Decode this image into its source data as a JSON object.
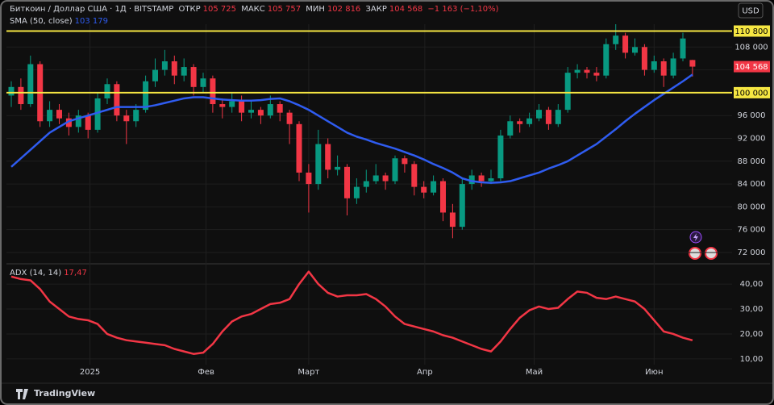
{
  "header": {
    "title": "Биткоин / Доллар США · 1Д · BITSTAMP",
    "fields": [
      {
        "label": "ОТКР",
        "value": "105 725"
      },
      {
        "label": "МАКС",
        "value": "105 757"
      },
      {
        "label": "МИН",
        "value": "102 816"
      },
      {
        "label": "ЗАКР",
        "value": "104 568"
      }
    ],
    "change": "−1 163 (−1,10%)"
  },
  "currency": "USD",
  "footer": {
    "brand": "TradingView"
  },
  "chart_data": [
    {
      "type": "candlestick",
      "up_color": "#089981",
      "down_color": "#f23645",
      "ylim": [
        70300,
        112000
      ],
      "yticks": [
        {
          "value": 72000,
          "label": "72 000"
        },
        {
          "value": 76000,
          "label": "76 000"
        },
        {
          "value": 80000,
          "label": "80 000"
        },
        {
          "value": 84000,
          "label": "84 000"
        },
        {
          "value": 88000,
          "label": "88 000"
        },
        {
          "value": 92000,
          "label": "92 000"
        },
        {
          "value": 96000,
          "label": "96 000"
        },
        {
          "value": 100000,
          "label": "100 000"
        },
        {
          "value": 104000,
          "label": "104 000"
        },
        {
          "value": 108000,
          "label": "108 000"
        }
      ],
      "xticks": [
        {
          "value": 8.2,
          "label": "2025"
        },
        {
          "value": 20.3,
          "label": "Фев"
        },
        {
          "value": 31,
          "label": "Март"
        },
        {
          "value": 43.1,
          "label": "Апр"
        },
        {
          "value": 54.5,
          "label": "Май"
        },
        {
          "value": 67,
          "label": "Июн"
        }
      ],
      "levels": [
        {
          "value": 110800,
          "label": "110 800",
          "color": "#f5e642"
        },
        {
          "value": 100000,
          "label": "100 000",
          "color": "#f5e642"
        }
      ],
      "last_price": {
        "value": 104568,
        "label": "104 568",
        "color": "#f23645"
      },
      "series": [
        {
          "ohlc": [
            [
              99500,
              102000,
              97500,
              101000
            ],
            [
              101000,
              102500,
              97000,
              98000
            ],
            [
              98000,
              106500,
              97500,
              105000
            ],
            [
              105000,
              105500,
              94000,
              95000
            ],
            [
              95000,
              98500,
              94000,
              97000
            ],
            [
              97000,
              98000,
              94500,
              95500
            ],
            [
              95500,
              96500,
              92500,
              94000
            ],
            [
              94000,
              97000,
              93000,
              96000
            ],
            [
              96000,
              96500,
              92000,
              93500
            ],
            [
              93500,
              100000,
              93000,
              99000
            ],
            [
              99000,
              102500,
              98000,
              101500
            ],
            [
              101500,
              102000,
              95000,
              96000
            ],
            [
              96000,
              97000,
              91000,
              95000
            ],
            [
              95000,
              98000,
              94000,
              97000
            ],
            [
              97000,
              103000,
              96500,
              102000
            ],
            [
              102000,
              106000,
              101000,
              104000
            ],
            [
              104000,
              107500,
              103000,
              105500
            ],
            [
              105500,
              106500,
              101500,
              103000
            ],
            [
              103000,
              106000,
              102000,
              104500
            ],
            [
              104500,
              105000,
              99500,
              101000
            ],
            [
              101000,
              103500,
              100000,
              102500
            ],
            [
              102500,
              103000,
              96500,
              98000
            ],
            [
              98000,
              99000,
              95500,
              97500
            ],
            [
              97500,
              100000,
              96500,
              98500
            ],
            [
              98500,
              99500,
              95000,
              96500
            ],
            [
              96500,
              98500,
              95500,
              97000
            ],
            [
              97000,
              97500,
              94500,
              96000
            ],
            [
              96000,
              99500,
              95500,
              98000
            ],
            [
              98000,
              98500,
              95000,
              96500
            ],
            [
              96500,
              97000,
              91000,
              94500
            ],
            [
              94500,
              95000,
              84500,
              86000
            ],
            [
              86000,
              87500,
              79000,
              84000
            ],
            [
              84000,
              93500,
              83000,
              91000
            ],
            [
              91000,
              92000,
              85000,
              86500
            ],
            [
              86500,
              89000,
              85500,
              87000
            ],
            [
              87000,
              87500,
              78500,
              81500
            ],
            [
              81500,
              85000,
              80500,
              83500
            ],
            [
              83500,
              86500,
              82500,
              84500
            ],
            [
              84500,
              87500,
              84000,
              85500
            ],
            [
              85500,
              86000,
              83000,
              84500
            ],
            [
              84500,
              89000,
              84000,
              88500
            ],
            [
              88500,
              89000,
              86000,
              87500
            ],
            [
              87500,
              88000,
              82000,
              83500
            ],
            [
              83500,
              84500,
              81500,
              82500
            ],
            [
              82500,
              85500,
              82000,
              84500
            ],
            [
              84500,
              85000,
              77500,
              79000
            ],
            [
              79000,
              80500,
              74500,
              76500
            ],
            [
              76500,
              85000,
              76000,
              84000
            ],
            [
              84000,
              86500,
              83000,
              85500
            ],
            [
              85500,
              86000,
              83500,
              84500
            ],
            [
              84500,
              86500,
              84000,
              85000
            ],
            [
              85000,
              93500,
              84500,
              92500
            ],
            [
              92500,
              96000,
              92000,
              95000
            ],
            [
              95000,
              95500,
              93000,
              94500
            ],
            [
              94500,
              96500,
              94000,
              95500
            ],
            [
              95500,
              98000,
              95000,
              97000
            ],
            [
              97000,
              97500,
              93500,
              94500
            ],
            [
              94500,
              98000,
              94000,
              97000
            ],
            [
              97000,
              104500,
              96500,
              103500
            ],
            [
              103500,
              105000,
              102500,
              104000
            ],
            [
              104000,
              104500,
              102500,
              103500
            ],
            [
              103500,
              104500,
              102000,
              103000
            ],
            [
              103000,
              109500,
              102500,
              108500
            ],
            [
              108500,
              112000,
              107500,
              110000
            ],
            [
              110000,
              110500,
              106000,
              107000
            ],
            [
              107000,
              109500,
              106500,
              108000
            ],
            [
              108000,
              108500,
              103000,
              104000
            ],
            [
              104000,
              106500,
              103500,
              105500
            ],
            [
              105500,
              106000,
              101000,
              103000
            ],
            [
              103000,
              107000,
              102500,
              106000
            ],
            [
              106000,
              110500,
              105500,
              109500
            ],
            [
              105725,
              105757,
              102816,
              104568
            ]
          ]
        },
        {
          "name": "SMA (50, close)",
          "type": "line",
          "color": "#2f5cf0",
          "last_label": "103 179",
          "values": [
            87000,
            88500,
            90000,
            91500,
            93000,
            94000,
            95000,
            95500,
            96000,
            96500,
            97000,
            97500,
            97500,
            97500,
            97500,
            97800,
            98200,
            98600,
            99000,
            99200,
            99200,
            99000,
            98800,
            98700,
            98600,
            98600,
            98700,
            98900,
            99000,
            98500,
            97800,
            97000,
            96000,
            95000,
            94000,
            93000,
            92300,
            91800,
            91200,
            90700,
            90200,
            89600,
            89000,
            88300,
            87500,
            86800,
            86000,
            85000,
            84500,
            84300,
            84200,
            84300,
            84500,
            85000,
            85500,
            86000,
            86700,
            87300,
            88000,
            89000,
            90000,
            91000,
            92300,
            93600,
            95000,
            96300,
            97500,
            98700,
            99800,
            100900,
            102000,
            103179
          ]
        }
      ]
    },
    {
      "type": "line",
      "ylim": [
        7.7,
        46.5
      ],
      "yticks": [
        {
          "value": 10,
          "label": "10,00"
        },
        {
          "value": 20,
          "label": "20,00"
        },
        {
          "value": 30,
          "label": "30,00"
        },
        {
          "value": 40,
          "label": "40,00"
        }
      ],
      "series": [
        {
          "name": "ADX (14, 14)",
          "color": "#f23645",
          "last_label": "17,47",
          "values": [
            43,
            42,
            41.5,
            38,
            33,
            30,
            27,
            26,
            25.5,
            24,
            20,
            18.5,
            17.5,
            17,
            16.5,
            16,
            15.5,
            14,
            13,
            12,
            12.5,
            16,
            21,
            25,
            27,
            28,
            30,
            32,
            32.5,
            34,
            40,
            45,
            40,
            36.5,
            35,
            35.5,
            35.5,
            36,
            34,
            31,
            27,
            24,
            23,
            22,
            21,
            19.5,
            18.5,
            17,
            15.5,
            14,
            13,
            17,
            22,
            26.5,
            29.5,
            31,
            30,
            30.5,
            34,
            37,
            36.5,
            34.5,
            34,
            35,
            34,
            33,
            30,
            25.5,
            21,
            20,
            18.5,
            17.47
          ]
        }
      ]
    }
  ]
}
